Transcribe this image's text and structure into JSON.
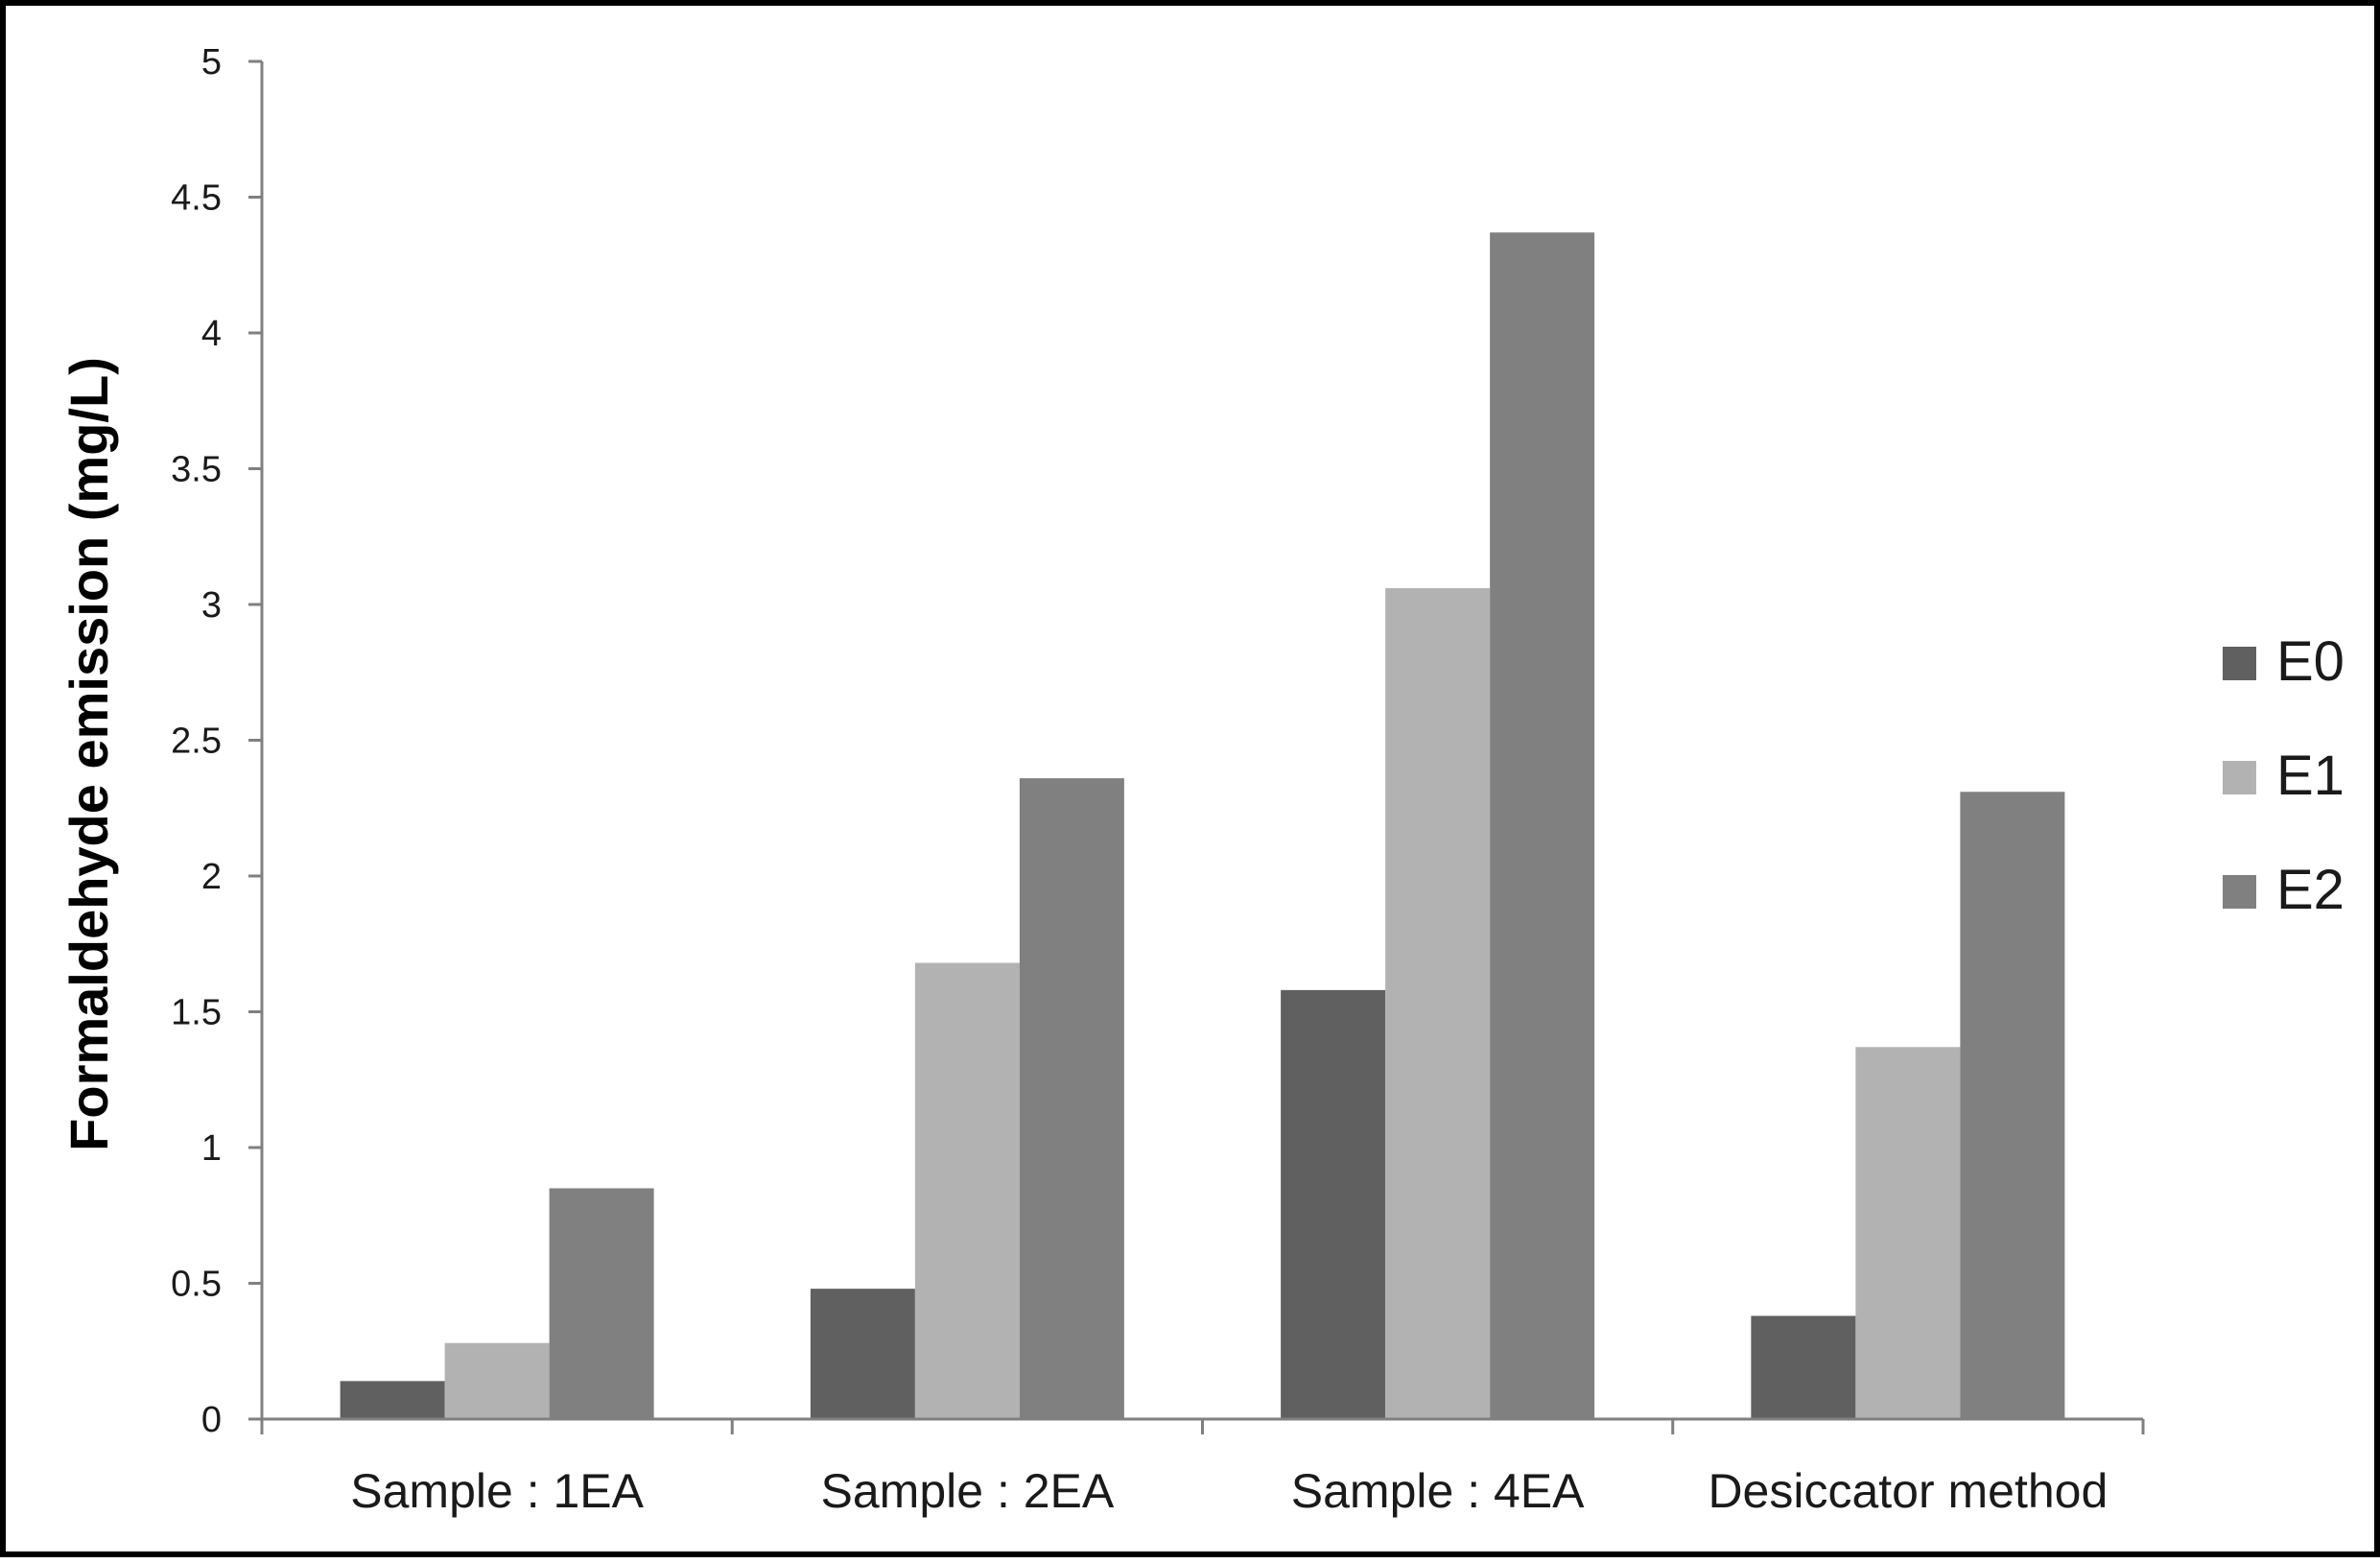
{
  "chart_data": {
    "type": "bar",
    "title": "",
    "xlabel": "",
    "ylabel": "Formaldehyde emission (mg/L)",
    "ylim": [
      0,
      5
    ],
    "yticks": [
      "0",
      "0.5",
      "1",
      "1.5",
      "2",
      "2.5",
      "3",
      "3.5",
      "4",
      "4.5",
      "5"
    ],
    "categories": [
      "Sample : 1EA",
      "Sample : 2EA",
      "Sample : 4EA",
      "Desiccator method"
    ],
    "series": [
      {
        "name": "E0",
        "color": "#606060",
        "values": [
          0.14,
          0.48,
          1.58,
          0.38
        ]
      },
      {
        "name": "E1",
        "color": "#b2b2b2",
        "values": [
          0.28,
          1.68,
          3.06,
          1.37
        ]
      },
      {
        "name": "E2",
        "color": "#808080",
        "values": [
          0.85,
          2.36,
          4.37,
          2.31
        ]
      }
    ],
    "grid": false,
    "legend_position": "right"
  }
}
